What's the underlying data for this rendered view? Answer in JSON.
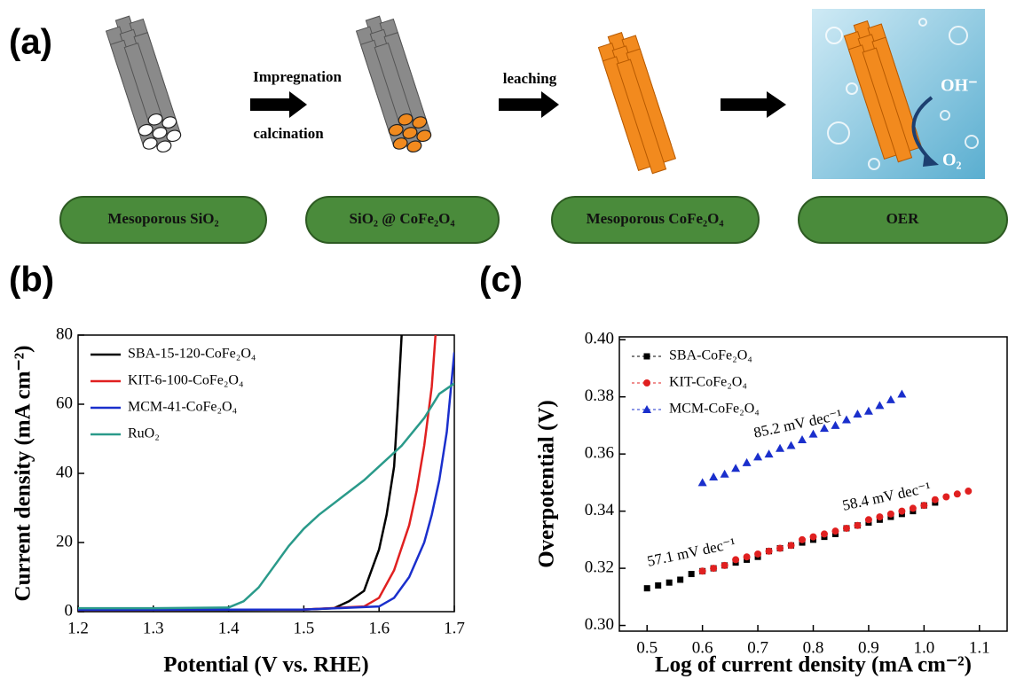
{
  "panel_a": {
    "label": "(a)",
    "steps": [
      "Impregnation",
      "calcination",
      "leaching"
    ],
    "stages": [
      "Mesoporous SiO₂",
      "SiO₂ @ CoFe₂O₄",
      "Mesoporous CoFe₂O₄",
      "OER"
    ],
    "oer_labels": [
      "OH⁻",
      "O₂"
    ]
  },
  "chart_data": [
    {
      "type": "line",
      "panel_label": "(b)",
      "x_label": "Potential (V vs. RHE)",
      "y_label": "Current density (mA cm⁻²)",
      "xlim": [
        1.2,
        1.7
      ],
      "ylim": [
        0,
        80
      ],
      "xticks": [
        1.2,
        1.3,
        1.4,
        1.5,
        1.6,
        1.7
      ],
      "yticks": [
        0,
        20,
        40,
        60,
        80
      ],
      "legend": "upper left",
      "series": [
        {
          "name": "SBA-15-120-CoFe₂O₄",
          "color": "#000000",
          "x": [
            1.2,
            1.3,
            1.4,
            1.5,
            1.54,
            1.56,
            1.58,
            1.6,
            1.61,
            1.62,
            1.625,
            1.63
          ],
          "values": [
            0.5,
            0.5,
            0.5,
            0.6,
            1,
            3,
            6,
            18,
            28,
            42,
            60,
            80
          ]
        },
        {
          "name": "KIT-6-100-CoFe₂O₄",
          "color": "#e02020",
          "x": [
            1.2,
            1.5,
            1.58,
            1.6,
            1.62,
            1.64,
            1.65,
            1.66,
            1.67,
            1.675
          ],
          "values": [
            0.5,
            0.6,
            1.5,
            4,
            12,
            25,
            35,
            48,
            65,
            80
          ]
        },
        {
          "name": "MCM-41-CoFe₂O₄",
          "color": "#1a2fcc",
          "x": [
            1.2,
            1.5,
            1.6,
            1.62,
            1.64,
            1.66,
            1.67,
            1.68,
            1.69,
            1.7
          ],
          "values": [
            0.5,
            0.6,
            1.5,
            4,
            10,
            20,
            28,
            38,
            52,
            75
          ]
        },
        {
          "name": "RuO₂",
          "color": "#2a9a8a",
          "x": [
            1.2,
            1.3,
            1.4,
            1.42,
            1.44,
            1.46,
            1.48,
            1.5,
            1.52,
            1.55,
            1.58,
            1.6,
            1.63,
            1.66,
            1.68,
            1.7
          ],
          "values": [
            1,
            1,
            1.2,
            3,
            7,
            13,
            19,
            24,
            28,
            33,
            38,
            42,
            48,
            56,
            63,
            66
          ]
        }
      ]
    },
    {
      "type": "scatter",
      "panel_label": "(c)",
      "x_label": "Log of current density (mA cm⁻²)",
      "y_label": "Overpotential (V)",
      "xlim": [
        0.45,
        1.15
      ],
      "ylim": [
        0.298,
        0.401
      ],
      "xticks": [
        0.5,
        0.6,
        0.7,
        0.8,
        0.9,
        {
          "value": 1.0,
          "label": "1.0"
        },
        1.1
      ],
      "yticks": [
        {
          "value": 0.3,
          "label": "0.30"
        },
        0.32,
        0.34,
        0.36,
        0.38,
        {
          "value": 0.4,
          "label": "0.40"
        }
      ],
      "legend": "upper left",
      "annotations": [
        "57.1 mV dec⁻¹",
        "58.4 mV dec⁻¹",
        "85.2 mV dec⁻¹"
      ],
      "series": [
        {
          "name": "SBA-CoFe₂O₄",
          "color": "#000000",
          "marker": "square",
          "x": [
            0.5,
            0.52,
            0.54,
            0.56,
            0.58,
            0.6,
            0.62,
            0.64,
            0.66,
            0.68,
            0.7,
            0.72,
            0.74,
            0.76,
            0.78,
            0.8,
            0.82,
            0.84,
            0.86,
            0.88,
            0.9,
            0.92,
            0.94,
            0.96,
            0.98,
            1.0,
            1.02
          ],
          "values": [
            0.313,
            0.314,
            0.315,
            0.316,
            0.318,
            0.319,
            0.32,
            0.321,
            0.322,
            0.323,
            0.324,
            0.326,
            0.327,
            0.328,
            0.329,
            0.33,
            0.331,
            0.332,
            0.334,
            0.335,
            0.336,
            0.337,
            0.338,
            0.339,
            0.34,
            0.342,
            0.343
          ]
        },
        {
          "name": "KIT-CoFe₂O₄",
          "color": "#e02020",
          "marker": "circle",
          "x": [
            0.6,
            0.62,
            0.64,
            0.66,
            0.68,
            0.7,
            0.72,
            0.74,
            0.76,
            0.78,
            0.8,
            0.82,
            0.84,
            0.86,
            0.88,
            0.9,
            0.92,
            0.94,
            0.96,
            0.98,
            1.0,
            1.02,
            1.04,
            1.06,
            1.08
          ],
          "values": [
            0.319,
            0.32,
            0.321,
            0.323,
            0.324,
            0.325,
            0.326,
            0.327,
            0.328,
            0.33,
            0.331,
            0.332,
            0.333,
            0.334,
            0.335,
            0.337,
            0.338,
            0.339,
            0.34,
            0.341,
            0.342,
            0.344,
            0.345,
            0.346,
            0.347
          ]
        },
        {
          "name": "MCM-CoFe₂O₄",
          "color": "#1a2fcc",
          "marker": "triangle",
          "x": [
            0.6,
            0.62,
            0.64,
            0.66,
            0.68,
            0.7,
            0.72,
            0.74,
            0.76,
            0.78,
            0.8,
            0.82,
            0.84,
            0.86,
            0.88,
            0.9,
            0.92,
            0.94,
            0.96
          ],
          "values": [
            0.35,
            0.352,
            0.353,
            0.355,
            0.357,
            0.359,
            0.36,
            0.362,
            0.363,
            0.365,
            0.367,
            0.369,
            0.37,
            0.372,
            0.374,
            0.375,
            0.377,
            0.379,
            0.381
          ]
        }
      ]
    }
  ]
}
